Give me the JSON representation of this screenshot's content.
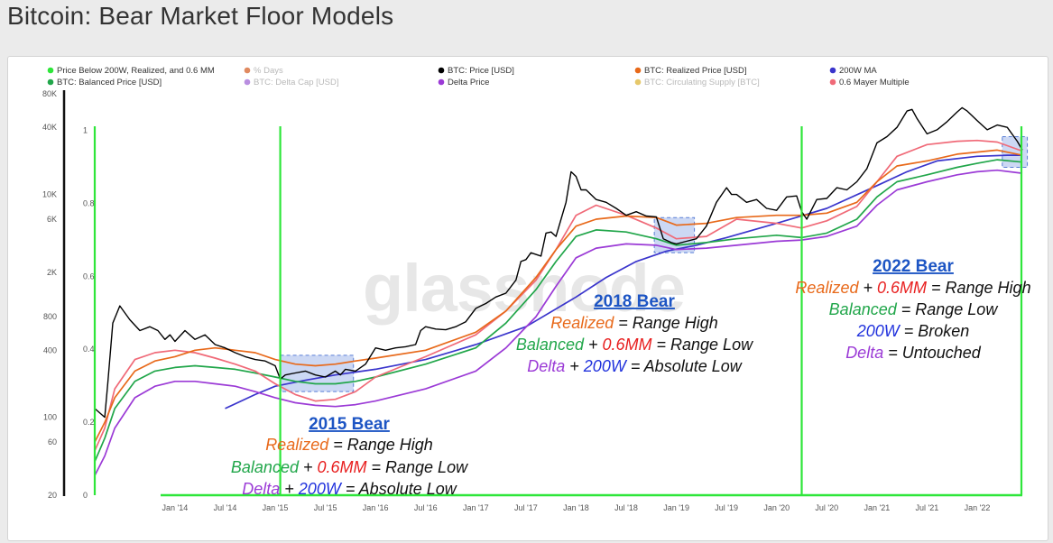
{
  "title": "Bitcoin: Bear Market Floor Models",
  "watermark": "glassnode",
  "colors": {
    "price": "#000000",
    "realized": "#e8691a",
    "balanced": "#21a64a",
    "ma200w": "#3a35cc",
    "delta": "#9b3ad6",
    "mayer": "#f06a78",
    "signal": "#2ee63a",
    "highlight": "#8fa8e6"
  },
  "legend": [
    {
      "label": "Price Below 200W, Realized, and 0.6 MM",
      "color": "#2ee63a",
      "muted": false
    },
    {
      "label": "% Days",
      "color": "#e08a60",
      "muted": true
    },
    {
      "label": "BTC: Price [USD]",
      "color": "#000000",
      "muted": false
    },
    {
      "label": "BTC: Realized Price [USD]",
      "color": "#e8691a",
      "muted": false
    },
    {
      "label": "200W MA",
      "color": "#3a35cc",
      "muted": false
    },
    {
      "label": "BTC: Balanced Price [USD]",
      "color": "#21a64a",
      "muted": false
    },
    {
      "label": "BTC: Delta Cap [USD]",
      "color": "#b98ee0",
      "muted": true
    },
    {
      "label": "Delta Price",
      "color": "#9b3ad6",
      "muted": false
    },
    {
      "label": "BTC: Circulating Supply [BTC]",
      "color": "#e6c86a",
      "muted": true
    },
    {
      "label": "0.6 Mayer Multiple",
      "color": "#f06a78",
      "muted": false
    }
  ],
  "annotations": [
    {
      "id": "2015",
      "title": "2015 Bear",
      "lines": [
        [
          {
            "t": "Realized",
            "c": "realized"
          },
          {
            "t": " = Range High",
            "c": "text"
          }
        ],
        [
          {
            "t": "Balanced",
            "c": "balanced"
          },
          {
            "t": " + ",
            "c": "text"
          },
          {
            "t": "0.6MM",
            "c": "red"
          },
          {
            "t": " = Range Low",
            "c": "text"
          }
        ],
        [
          {
            "t": "Delta",
            "c": "delta"
          },
          {
            "t": " + ",
            "c": "text"
          },
          {
            "t": "200W",
            "c": "ma"
          },
          {
            "t": " = Absolute Low",
            "c": "text"
          }
        ]
      ]
    },
    {
      "id": "2018",
      "title": "2018 Bear",
      "lines": [
        [
          {
            "t": "Realized",
            "c": "realized"
          },
          {
            "t": " = Range High",
            "c": "text"
          }
        ],
        [
          {
            "t": "Balanced",
            "c": "balanced"
          },
          {
            "t": " + ",
            "c": "text"
          },
          {
            "t": "0.6MM",
            "c": "red"
          },
          {
            "t": " = Range Low",
            "c": "text"
          }
        ],
        [
          {
            "t": "Delta",
            "c": "delta"
          },
          {
            "t": " + ",
            "c": "text"
          },
          {
            "t": "200W",
            "c": "ma"
          },
          {
            "t": " = Absolute Low",
            "c": "text"
          }
        ]
      ]
    },
    {
      "id": "2022",
      "title": "2022 Bear",
      "lines": [
        [
          {
            "t": "Realized",
            "c": "realized"
          },
          {
            "t": " + ",
            "c": "text"
          },
          {
            "t": "0.6MM",
            "c": "red"
          },
          {
            "t": " = Range High",
            "c": "text"
          }
        ],
        [
          {
            "t": "Balanced",
            "c": "balanced"
          },
          {
            "t": " = Range Low",
            "c": "text"
          }
        ],
        [
          {
            "t": "200W",
            "c": "ma"
          },
          {
            "t": " = Broken",
            "c": "text"
          }
        ],
        [
          {
            "t": "Delta",
            "c": "delta"
          },
          {
            "t": " = Untouched",
            "c": "text"
          }
        ]
      ]
    }
  ],
  "chart_data": {
    "type": "line",
    "title": "Bitcoin: Bear Market Floor Models",
    "y_scale": "log",
    "ylim": [
      20,
      80000
    ],
    "y_ticks": [
      {
        "label": "80K",
        "value": 80000
      },
      {
        "label": "40K",
        "value": 40000
      },
      {
        "label": "10K",
        "value": 10000
      },
      {
        "label": "6K",
        "value": 6000
      },
      {
        "label": "2K",
        "value": 2000
      },
      {
        "label": "800",
        "value": 800
      },
      {
        "label": "400",
        "value": 400
      },
      {
        "label": "100",
        "value": 100
      },
      {
        "label": "60",
        "value": 60
      },
      {
        "label": "20",
        "value": 20
      }
    ],
    "y2_ticks": [
      {
        "label": "1",
        "value": 1.0
      },
      {
        "label": "0.8",
        "value": 0.8
      },
      {
        "label": "0.6",
        "value": 0.6
      },
      {
        "label": "0.4",
        "value": 0.4
      },
      {
        "label": "0.2",
        "value": 0.2
      },
      {
        "label": "0",
        "value": 0.0
      }
    ],
    "y2lim": [
      0,
      1.1
    ],
    "xlim": [
      2013.2,
      2022.45
    ],
    "x_ticks": [
      {
        "label": "Jan '14",
        "value": 2014.0
      },
      {
        "label": "Jul '14",
        "value": 2014.5
      },
      {
        "label": "Jan '15",
        "value": 2015.0
      },
      {
        "label": "Jul '15",
        "value": 2015.5
      },
      {
        "label": "Jan '16",
        "value": 2016.0
      },
      {
        "label": "Jul '16",
        "value": 2016.5
      },
      {
        "label": "Jan '17",
        "value": 2017.0
      },
      {
        "label": "Jul '17",
        "value": 2017.5
      },
      {
        "label": "Jan '18",
        "value": 2018.0
      },
      {
        "label": "Jul '18",
        "value": 2018.5
      },
      {
        "label": "Jan '19",
        "value": 2019.0
      },
      {
        "label": "Jul '19",
        "value": 2019.5
      },
      {
        "label": "Jan '20",
        "value": 2020.0
      },
      {
        "label": "Jul '20",
        "value": 2020.5
      },
      {
        "label": "Jan '21",
        "value": 2021.0
      },
      {
        "label": "Jul '21",
        "value": 2021.5
      },
      {
        "label": "Jan '22",
        "value": 2022.0
      }
    ],
    "signal_lines": [
      2013.2,
      2015.05,
      2020.25,
      2022.45
    ],
    "highlight_zones": [
      {
        "x0": 2015.05,
        "x1": 2015.78,
        "y0": 170,
        "y1": 360
      },
      {
        "x0": 2018.78,
        "x1": 2019.18,
        "y0": 3000,
        "y1": 6200
      },
      {
        "x0": 2022.25,
        "x1": 2022.5,
        "y0": 17500,
        "y1": 33000
      }
    ],
    "series": [
      {
        "name": "BTC: Price [USD]",
        "key": "price",
        "x": [
          2013.2,
          2013.3,
          2013.33,
          2013.38,
          2013.45,
          2013.55,
          2013.65,
          2013.75,
          2013.83,
          2013.9,
          2013.95,
          2014.0,
          2014.1,
          2014.2,
          2014.3,
          2014.4,
          2014.5,
          2014.6,
          2014.7,
          2014.8,
          2014.9,
          2015.0,
          2015.05,
          2015.1,
          2015.2,
          2015.3,
          2015.4,
          2015.5,
          2015.6,
          2015.65,
          2015.7,
          2015.8,
          2015.9,
          2016.0,
          2016.1,
          2016.2,
          2016.3,
          2016.4,
          2016.45,
          2016.5,
          2016.6,
          2016.7,
          2016.8,
          2016.9,
          2017.0,
          2017.05,
          2017.1,
          2017.2,
          2017.3,
          2017.4,
          2017.45,
          2017.5,
          2017.55,
          2017.65,
          2017.7,
          2017.75,
          2017.8,
          2017.85,
          2017.9,
          2017.95,
          2018.0,
          2018.05,
          2018.1,
          2018.2,
          2018.3,
          2018.4,
          2018.5,
          2018.6,
          2018.7,
          2018.8,
          2018.87,
          2018.95,
          2019.0,
          2019.1,
          2019.2,
          2019.3,
          2019.4,
          2019.5,
          2019.55,
          2019.6,
          2019.7,
          2019.8,
          2019.9,
          2020.0,
          2020.1,
          2020.2,
          2020.25,
          2020.3,
          2020.4,
          2020.5,
          2020.6,
          2020.7,
          2020.8,
          2020.9,
          2021.0,
          2021.1,
          2021.2,
          2021.3,
          2021.35,
          2021.4,
          2021.5,
          2021.6,
          2021.7,
          2021.8,
          2021.85,
          2021.9,
          2022.0,
          2022.1,
          2022.2,
          2022.3,
          2022.4,
          2022.45
        ],
        "y": [
          120,
          100,
          200,
          700,
          1000,
          750,
          600,
          650,
          600,
          500,
          550,
          480,
          600,
          500,
          550,
          450,
          420,
          380,
          350,
          330,
          320,
          290,
          220,
          240,
          250,
          260,
          240,
          230,
          260,
          240,
          270,
          260,
          300,
          420,
          400,
          420,
          430,
          450,
          600,
          650,
          620,
          610,
          650,
          720,
          950,
          1000,
          1050,
          1200,
          1300,
          1700,
          2500,
          2600,
          3000,
          2800,
          4500,
          4600,
          4200,
          6000,
          8500,
          16000,
          14500,
          11000,
          11000,
          9000,
          8500,
          7500,
          6500,
          7000,
          6400,
          6300,
          4000,
          3700,
          3600,
          3800,
          4000,
          5200,
          8500,
          11500,
          10000,
          10000,
          8500,
          9000,
          7500,
          7200,
          9500,
          9700,
          7000,
          6000,
          9000,
          9200,
          11500,
          11000,
          13000,
          17000,
          29000,
          33000,
          40000,
          56000,
          58000,
          48000,
          35000,
          38000,
          45000,
          55000,
          60000,
          56000,
          46000,
          38000,
          42000,
          40000,
          30000,
          25000
        ]
      },
      {
        "name": "BTC: Realized Price [USD]",
        "key": "realized",
        "x": [
          2013.2,
          2013.3,
          2013.4,
          2013.6,
          2013.8,
          2014.0,
          2014.2,
          2014.4,
          2014.6,
          2014.8,
          2015.0,
          2015.2,
          2015.4,
          2015.6,
          2015.8,
          2016.0,
          2016.5,
          2017.0,
          2017.3,
          2017.6,
          2017.8,
          2018.0,
          2018.2,
          2018.5,
          2018.8,
          2019.0,
          2019.3,
          2019.6,
          2020.0,
          2020.25,
          2020.5,
          2020.8,
          2021.0,
          2021.2,
          2021.5,
          2021.8,
          2022.0,
          2022.2,
          2022.45
        ],
        "y": [
          60,
          90,
          150,
          260,
          320,
          350,
          400,
          420,
          400,
          380,
          330,
          300,
          290,
          300,
          320,
          340,
          400,
          580,
          900,
          1800,
          3200,
          5200,
          6000,
          6400,
          6200,
          5300,
          5500,
          6200,
          6500,
          6500,
          6800,
          8500,
          13000,
          18000,
          20000,
          23000,
          24000,
          25000,
          22500
        ]
      },
      {
        "name": "BTC: Balanced Price [USD]",
        "key": "balanced",
        "x": [
          2013.2,
          2013.3,
          2013.4,
          2013.6,
          2013.8,
          2014.0,
          2014.2,
          2014.4,
          2014.6,
          2014.8,
          2015.0,
          2015.2,
          2015.4,
          2015.6,
          2015.8,
          2016.0,
          2016.5,
          2017.0,
          2017.3,
          2017.6,
          2017.8,
          2018.0,
          2018.2,
          2018.5,
          2018.8,
          2019.0,
          2019.3,
          2019.6,
          2020.0,
          2020.25,
          2020.5,
          2020.8,
          2021.0,
          2021.2,
          2021.5,
          2021.8,
          2022.0,
          2022.2,
          2022.45
        ],
        "y": [
          40,
          65,
          120,
          210,
          260,
          280,
          290,
          280,
          270,
          250,
          230,
          210,
          200,
          200,
          210,
          230,
          300,
          420,
          700,
          1400,
          2500,
          4200,
          4800,
          4600,
          4000,
          3500,
          3700,
          4000,
          4300,
          4100,
          4500,
          6000,
          9500,
          13000,
          15000,
          17500,
          19000,
          20500,
          19500
        ]
      },
      {
        "name": "200W MA",
        "key": "ma200w",
        "x": [
          2014.5,
          2014.8,
          2015.0,
          2015.3,
          2015.6,
          2016.0,
          2016.5,
          2017.0,
          2017.5,
          2018.0,
          2018.3,
          2018.6,
          2018.9,
          2019.2,
          2019.5,
          2020.0,
          2020.5,
          2021.0,
          2021.3,
          2021.6,
          2022.0,
          2022.3,
          2022.45
        ],
        "y": [
          120,
          160,
          190,
          215,
          240,
          270,
          330,
          450,
          650,
          1200,
          1800,
          2500,
          3100,
          3500,
          4100,
          5500,
          7500,
          12000,
          16000,
          20000,
          22000,
          22500,
          22500
        ]
      },
      {
        "name": "Delta Price",
        "key": "delta",
        "x": [
          2013.2,
          2013.3,
          2013.4,
          2013.6,
          2013.8,
          2014.0,
          2014.2,
          2014.4,
          2014.6,
          2014.8,
          2015.0,
          2015.2,
          2015.4,
          2015.6,
          2015.8,
          2016.0,
          2016.5,
          2017.0,
          2017.3,
          2017.6,
          2017.8,
          2018.0,
          2018.2,
          2018.5,
          2018.8,
          2019.0,
          2019.3,
          2019.6,
          2020.0,
          2020.25,
          2020.5,
          2020.8,
          2021.0,
          2021.2,
          2021.5,
          2021.8,
          2022.0,
          2022.2,
          2022.45
        ],
        "y": [
          30,
          45,
          80,
          150,
          190,
          210,
          210,
          200,
          190,
          170,
          150,
          135,
          128,
          125,
          130,
          140,
          180,
          260,
          420,
          800,
          1500,
          2700,
          3300,
          3600,
          3500,
          3200,
          3300,
          3500,
          3800,
          3900,
          4200,
          5200,
          8000,
          11000,
          13000,
          15000,
          16000,
          16500,
          15500
        ]
      },
      {
        "name": "0.6 Mayer Multiple",
        "key": "mayer",
        "x": [
          2013.2,
          2013.3,
          2013.4,
          2013.6,
          2013.8,
          2014.0,
          2014.2,
          2014.4,
          2014.6,
          2014.8,
          2015.0,
          2015.2,
          2015.4,
          2015.6,
          2015.8,
          2016.0,
          2016.5,
          2017.0,
          2017.3,
          2017.6,
          2017.8,
          2018.0,
          2018.2,
          2018.5,
          2018.8,
          2019.0,
          2019.3,
          2019.6,
          2020.0,
          2020.25,
          2020.5,
          2020.8,
          2021.0,
          2021.2,
          2021.5,
          2021.8,
          2022.0,
          2022.2,
          2022.45
        ],
        "y": [
          50,
          80,
          180,
          330,
          380,
          400,
          380,
          340,
          300,
          260,
          200,
          160,
          140,
          145,
          170,
          230,
          350,
          550,
          900,
          1700,
          3200,
          6500,
          8000,
          6500,
          5000,
          4000,
          4200,
          6000,
          5500,
          5000,
          5800,
          7800,
          13000,
          22000,
          28000,
          30000,
          30500,
          29500,
          24500
        ]
      }
    ]
  }
}
